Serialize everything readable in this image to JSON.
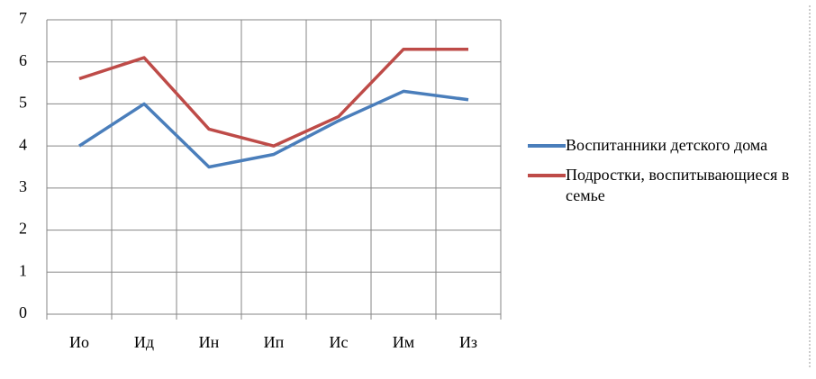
{
  "chart_data": {
    "type": "line",
    "categories": [
      "Ио",
      "Ид",
      "Ин",
      "Ип",
      "Ис",
      "Им",
      "Из"
    ],
    "series": [
      {
        "name": "Воспитанники детского дома",
        "color": "#4a7ebb",
        "values": [
          4,
          5,
          3.5,
          3.8,
          4.6,
          5.3,
          5.1
        ]
      },
      {
        "name": "Подростки, воспитывающиеся в семье",
        "color": "#be4b48",
        "values": [
          5.6,
          6.1,
          4.4,
          4.0,
          4.7,
          6.3,
          6.3
        ]
      }
    ],
    "ylim": [
      0,
      7
    ],
    "yticks": [
      0,
      1,
      2,
      3,
      4,
      5,
      6,
      7
    ],
    "grid": true,
    "legend": "right"
  }
}
